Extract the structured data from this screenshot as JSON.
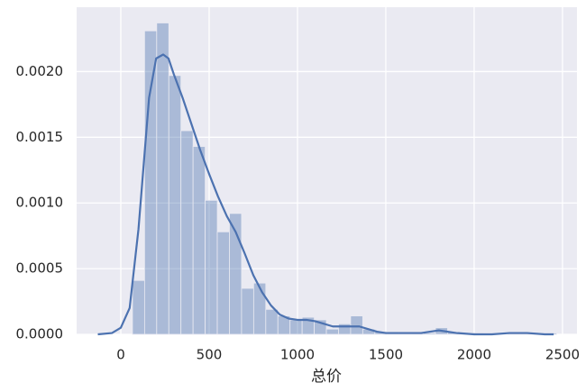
{
  "chart_data": {
    "type": "histogram",
    "xlabel": "总价",
    "bins": [
      66,
      134.6,
      203.2,
      271.8,
      340.4,
      409,
      477.6,
      546.2,
      614.8,
      683.4,
      752,
      820.6,
      889.2,
      957.8,
      1026.4,
      1095,
      1163.6,
      1232.2,
      1300.8,
      1369.4,
      1438,
      1506.6,
      1575.2,
      1643.8,
      1712.4,
      1781,
      1849.6,
      1918.2,
      1986.8,
      2055.4,
      2124,
      2192.6,
      2261.2,
      2329.8,
      2398.4,
      2467
    ],
    "values": [
      0.00041,
      0.00231,
      0.00237,
      0.00197,
      0.00155,
      0.00143,
      0.00102,
      0.00078,
      0.00092,
      0.00035,
      0.00039,
      0.00019,
      0.00014,
      0.00011,
      0.00013,
      0.00011,
      4e-05,
      8e-05,
      0.00014,
      4e-05,
      2e-05,
      2e-05,
      1e-05,
      1e-05,
      1e-05,
      5e-05,
      2e-05,
      1e-05,
      1e-05,
      0,
      0,
      1e-05,
      1e-05,
      1e-05,
      1e-05
    ],
    "color": "#4c72b0",
    "kde": {
      "color": "#4c72b0",
      "x": [
        -130,
        -50,
        0,
        50,
        100,
        130,
        160,
        200,
        240,
        270,
        300,
        350,
        400,
        450,
        500,
        550,
        600,
        650,
        700,
        750,
        800,
        850,
        900,
        950,
        1000,
        1050,
        1100,
        1150,
        1200,
        1250,
        1300,
        1350,
        1400,
        1450,
        1500,
        1600,
        1700,
        1800,
        1900,
        2000,
        2100,
        2200,
        2300,
        2400,
        2450
      ],
      "values": [
        0,
        1e-05,
        5e-05,
        0.0002,
        0.0008,
        0.0013,
        0.0018,
        0.0021,
        0.00213,
        0.0021,
        0.00198,
        0.0018,
        0.0016,
        0.0014,
        0.00122,
        0.00105,
        0.0009,
        0.00078,
        0.00062,
        0.00045,
        0.00032,
        0.00022,
        0.00015,
        0.00012,
        0.00011,
        0.00011,
        0.0001,
        8e-05,
        6e-05,
        6e-05,
        6e-05,
        6e-05,
        4e-05,
        2e-05,
        1e-05,
        1e-05,
        1e-05,
        3e-05,
        1e-05,
        0,
        0,
        1e-05,
        1e-05,
        0,
        0
      ]
    },
    "xlim": [
      -250,
      2582
    ],
    "ylim": [
      0,
      0.00249
    ],
    "xticks": [
      0,
      500,
      1000,
      1500,
      2000,
      2500
    ],
    "yticks": [
      {
        "value": 0,
        "label": "0.0000"
      },
      {
        "value": 0.0005,
        "label": "0.0005"
      },
      {
        "value": 0.001,
        "label": "0.0010"
      },
      {
        "value": 0.0015,
        "label": "0.0015"
      },
      {
        "value": 0.002,
        "label": "0.0020"
      }
    ],
    "grid": true
  }
}
